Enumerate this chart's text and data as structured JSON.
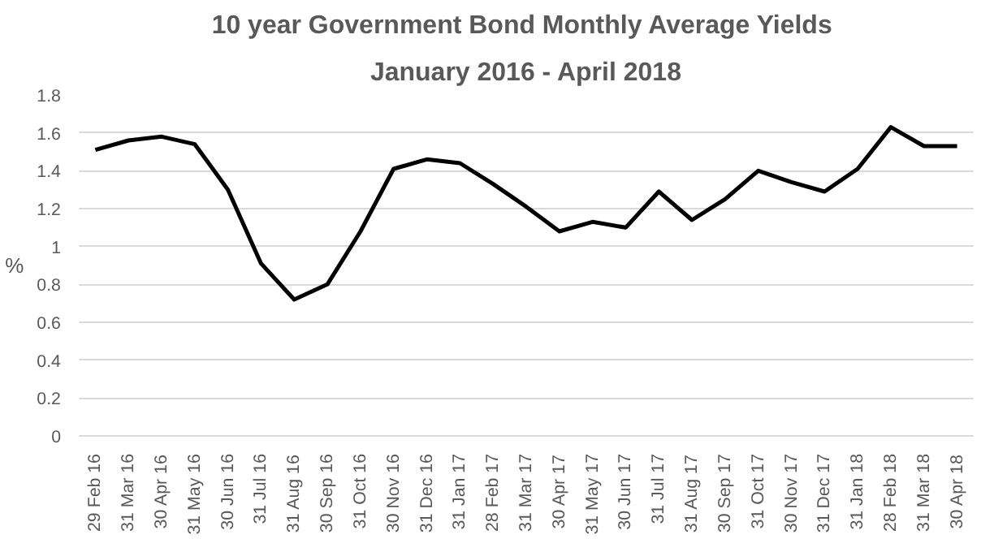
{
  "chart_data": {
    "type": "line",
    "title": "10 year Government  Bond Monthly Average Yields",
    "subtitle": "January 2016 - April 2018",
    "ylabel": "%",
    "categories": [
      "29 Feb 16",
      "31 Mar 16",
      "30 Apr 16",
      "31 May 16",
      "30 Jun 16",
      "31 Jul 16",
      "31 Aug 16",
      "30 Sep 16",
      "31 Oct 16",
      "30 Nov 16",
      "31 Dec 16",
      "31 Jan 17",
      "28 Feb 17",
      "31 Mar 17",
      "30 Apr 17",
      "31 May 17",
      "30 Jun 17",
      "31 Jul 17",
      "31 Aug 17",
      "30 Sep 17",
      "31 Oct 17",
      "30 Nov 17",
      "31 Dec 17",
      "31 Jan 18",
      "28 Feb 18",
      "31 Mar 18",
      "30 Apr 18"
    ],
    "series": [
      {
        "color": "#000000",
        "values": [
          1.51,
          1.56,
          1.58,
          1.54,
          1.3,
          0.91,
          0.72,
          0.8,
          1.08,
          1.41,
          1.46,
          1.44,
          1.33,
          1.21,
          1.08,
          1.13,
          1.1,
          1.29,
          1.14,
          1.25,
          1.4,
          1.34,
          1.29,
          1.41,
          1.63,
          1.53,
          1.53
        ]
      }
    ],
    "ylim": [
      0,
      1.8
    ],
    "yticks": [
      0,
      0.2,
      0.4,
      0.6,
      0.8,
      1,
      1.2,
      1.4,
      1.6,
      1.8
    ],
    "grid": "y",
    "marker": "none",
    "line_style": "solid"
  }
}
